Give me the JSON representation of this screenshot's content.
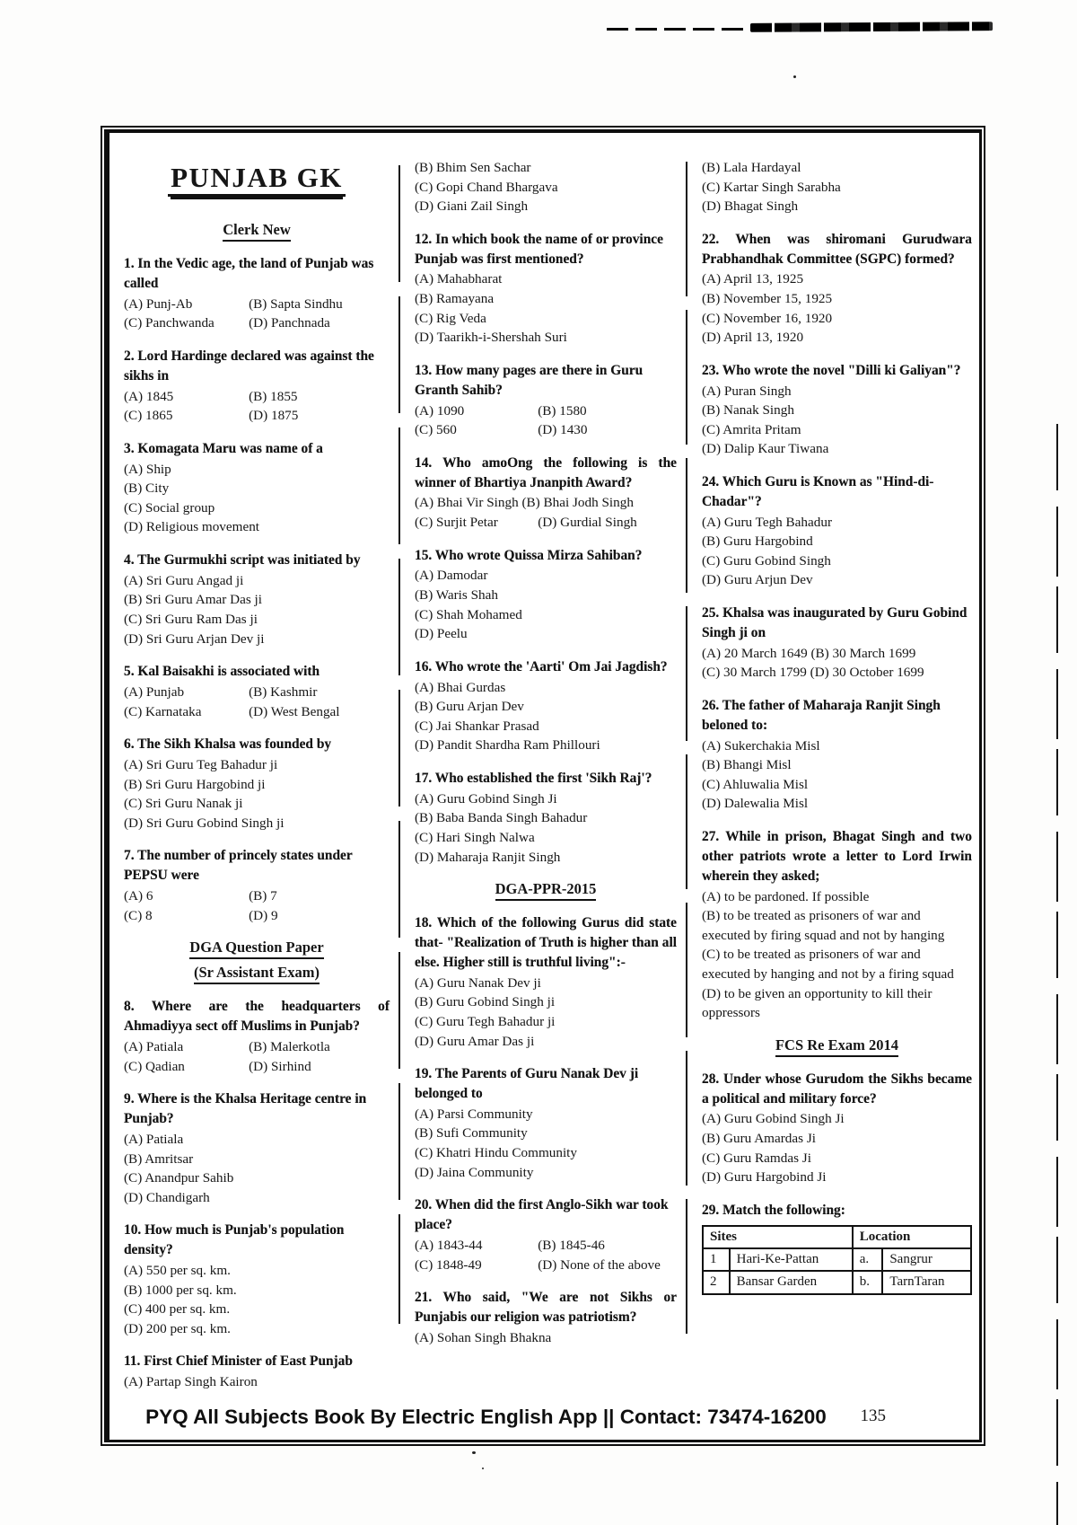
{
  "footer": {
    "text": "PYQ All Subjects Book By Electric English App || Contact: 73474-16200",
    "page": "135"
  },
  "columns": [
    {
      "blocks": [
        {
          "type": "page-title",
          "text": "PUNJAB GK"
        },
        {
          "type": "heading",
          "lines": [
            "Clerk New"
          ]
        },
        {
          "type": "question",
          "q": "1. In the Vedic age, the land of Punjab was called",
          "opts": [
            [
              "(A) Punj-Ab",
              "(B) Sapta Sindhu"
            ],
            [
              "(C) Panchwanda",
              "(D) Panchnada"
            ]
          ]
        },
        {
          "type": "question",
          "q": "2. Lord Hardinge declared was against the sikhs in",
          "opts": [
            [
              "(A) 1845",
              "(B) 1855"
            ],
            [
              "(C) 1865",
              "(D) 1875"
            ]
          ]
        },
        {
          "type": "question",
          "q": "3. Komagata Maru was name of a",
          "opts": [
            [
              "(A) Ship"
            ],
            [
              "(B) City"
            ],
            [
              "(C) Social group"
            ],
            [
              "(D) Religious movement"
            ]
          ]
        },
        {
          "type": "question",
          "q": "4. The Gurmukhi script was initiated by",
          "opts": [
            [
              "(A) Sri Guru Angad ji"
            ],
            [
              "(B) Sri Guru Amar Das ji"
            ],
            [
              "(C) Sri Guru Ram Das ji"
            ],
            [
              "(D) Sri Guru Arjan Dev ji"
            ]
          ]
        },
        {
          "type": "question",
          "q": "5. Kal Baisakhi is associated with",
          "opts": [
            [
              "(A) Punjab",
              "(B) Kashmir"
            ],
            [
              "(C) Karnataka",
              "(D) West Bengal"
            ]
          ]
        },
        {
          "type": "question",
          "q": "6. The Sikh Khalsa was founded by",
          "opts": [
            [
              "(A) Sri Guru Teg Bahadur ji"
            ],
            [
              "(B) Sri Guru Hargobind ji"
            ],
            [
              "(C) Sri Guru Nanak ji"
            ],
            [
              "(D) Sri Guru Gobind Singh ji"
            ]
          ]
        },
        {
          "type": "question",
          "q": "7. The number of princely states under PEPSU were",
          "opts": [
            [
              "(A) 6",
              "(B) 7"
            ],
            [
              "(C) 8",
              "(D) 9"
            ]
          ]
        },
        {
          "type": "heading",
          "lines": [
            "DGA Question Paper",
            "(Sr Assistant Exam)"
          ]
        },
        {
          "type": "question",
          "justify": true,
          "q": "8. Where are the headquarters of Ahmadiyya sect off Muslims in Punjab?",
          "opts": [
            [
              "(A) Patiala",
              "(B) Malerkotla"
            ],
            [
              "(C) Qadian",
              "(D) Sirhind"
            ]
          ]
        },
        {
          "type": "question",
          "q": "9. Where is the Khalsa Heritage centre in Punjab?",
          "opts": [
            [
              "(A) Patiala"
            ],
            [
              "(B) Amritsar"
            ],
            [
              "(C) Anandpur Sahib"
            ],
            [
              "(D) Chandigarh"
            ]
          ]
        },
        {
          "type": "question",
          "q": "10. How much is Punjab's population density?",
          "opts": [
            [
              "(A) 550 per sq. km."
            ],
            [
              "(B) 1000 per sq. km."
            ],
            [
              "(C) 400 per sq. km."
            ],
            [
              "(D) 200 per sq. km."
            ]
          ]
        },
        {
          "type": "question",
          "q": "11. First Chief Minister of East Punjab",
          "opts": [
            [
              "(A) Partap Singh Kairon"
            ]
          ]
        }
      ]
    },
    {
      "blocks": [
        {
          "type": "options-only",
          "opts": [
            [
              "(B) Bhim Sen Sachar"
            ],
            [
              "(C) Gopi Chand Bhargava"
            ],
            [
              "(D) Giani Zail Singh"
            ]
          ]
        },
        {
          "type": "question",
          "q": "12. In which book the name of or province Punjab was first mentioned?",
          "opts": [
            [
              "(A) Mahabharat"
            ],
            [
              "(B) Ramayana"
            ],
            [
              "(C) Rig Veda"
            ],
            [
              "(D) Taarikh-i-Shershah Suri"
            ]
          ]
        },
        {
          "type": "question",
          "q": "13. How many pages are there in Guru Granth Sahib?",
          "opts": [
            [
              "(A) 1090",
              "(B) 1580"
            ],
            [
              "(C) 560",
              "(D) 1430"
            ]
          ]
        },
        {
          "type": "question",
          "justify": true,
          "q": "14. Who amoOng the following is the winner of Bhartiya Jnanpith Award?",
          "opts": [
            [
              "(A) Bhai Vir Singh (B) Bhai Jodh Singh"
            ],
            [
              "(C) Surjit Petar",
              "(D) Gurdial Singh"
            ]
          ]
        },
        {
          "type": "question",
          "q": "15. Who wrote Quissa Mirza Sahiban?",
          "opts": [
            [
              "(A) Damodar"
            ],
            [
              "(B) Waris Shah"
            ],
            [
              "(C) Shah Mohamed"
            ],
            [
              "(D) Peelu"
            ]
          ]
        },
        {
          "type": "question",
          "q": "16. Who wrote the 'Aarti' Om Jai Jagdish?",
          "opts": [
            [
              "(A) Bhai Gurdas"
            ],
            [
              "(B) Guru Arjan Dev"
            ],
            [
              "(C) Jai Shankar Prasad"
            ],
            [
              "(D) Pandit Shardha Ram Phillouri"
            ]
          ]
        },
        {
          "type": "question",
          "q": "17. Who established the first 'Sikh Raj'?",
          "opts": [
            [
              "(A) Guru Gobind Singh Ji"
            ],
            [
              "(B) Baba Banda Singh Bahadur"
            ],
            [
              "(C) Hari Singh Nalwa"
            ],
            [
              "(D) Maharaja Ranjit Singh"
            ]
          ]
        },
        {
          "type": "heading",
          "lines": [
            "DGA-PPR-2015"
          ]
        },
        {
          "type": "question",
          "justify": true,
          "q": "18. Which of the following Gurus did state that- \"Realization of Truth is higher than all else. Higher still is truthful living\":-",
          "opts": [
            [
              "(A) Guru Nanak Dev ji"
            ],
            [
              "(B) Guru Gobind Singh ji"
            ],
            [
              "(C) Guru Tegh Bahadur ji"
            ],
            [
              "(D) Guru Amar Das ji"
            ]
          ]
        },
        {
          "type": "question",
          "q": "19. The Parents of Guru Nanak Dev ji belonged to",
          "opts": [
            [
              "(A) Parsi Community"
            ],
            [
              "(B) Sufi Community"
            ],
            [
              "(C) Khatri Hindu Community"
            ],
            [
              "(D) Jaina Community"
            ]
          ]
        },
        {
          "type": "question",
          "q": "20. When did the first Anglo-Sikh war took place?",
          "opts": [
            [
              "(A) 1843-44",
              "(B) 1845-46"
            ],
            [
              "(C) 1848-49",
              "(D) None of the above"
            ]
          ]
        },
        {
          "type": "question",
          "justify": true,
          "q": "21. Who said, \"We are not Sikhs or Punjabis our religion was patriotism?",
          "opts": [
            [
              "(A) Sohan Singh Bhakna"
            ]
          ]
        }
      ]
    },
    {
      "blocks": [
        {
          "type": "options-only",
          "opts": [
            [
              "(B) Lala Hardayal"
            ],
            [
              "(C) Kartar Singh Sarabha"
            ],
            [
              "(D) Bhagat Singh"
            ]
          ]
        },
        {
          "type": "question",
          "justify": true,
          "q": "22. When was shiromani Gurudwara Prabhandhak Committee (SGPC) formed?",
          "opts": [
            [
              "(A) April 13, 1925"
            ],
            [
              "(B) November 15, 1925"
            ],
            [
              "(C) November 16, 1920"
            ],
            [
              "(D) April 13, 1920"
            ]
          ]
        },
        {
          "type": "question",
          "q": "23. Who wrote the novel \"Dilli ki Galiyan\"?",
          "opts": [
            [
              "(A) Puran Singh"
            ],
            [
              "(B) Nanak Singh"
            ],
            [
              "(C) Amrita Pritam"
            ],
            [
              "(D) Dalip Kaur Tiwana"
            ]
          ]
        },
        {
          "type": "question",
          "q": "24. Which Guru is Known as \"Hind-di-Chadar\"?",
          "opts": [
            [
              "(A) Guru Tegh Bahadur"
            ],
            [
              "(B) Guru Hargobind"
            ],
            [
              "(C) Guru Gobind Singh"
            ],
            [
              "(D) Guru Arjun Dev"
            ]
          ]
        },
        {
          "type": "question",
          "q": "25. Khalsa was inaugurated by Guru Gobind Singh ji on",
          "opts": [
            [
              "(A) 20 March 1649 (B) 30 March 1699"
            ],
            [
              "(C) 30 March 1799 (D) 30 October 1699"
            ]
          ]
        },
        {
          "type": "question",
          "q": "26. The father of Maharaja Ranjit Singh beloned to:",
          "opts": [
            [
              "(A) Sukerchakia Misl"
            ],
            [
              "(B) Bhangi Misl"
            ],
            [
              "(C) Ahluwalia Misl"
            ],
            [
              "(D) Dalewalia Misl"
            ]
          ]
        },
        {
          "type": "question",
          "justify": true,
          "q": "27. While in prison, Bhagat Singh and two other patriots wrote a letter to Lord Irwin wherein they asked;",
          "opts": [
            [
              "(A) to be pardoned. If possible"
            ],
            [
              "(B) to be treated as prisoners of war and executed by firing squad and not by hanging"
            ],
            [
              "(C) to be treated as prisoners of war and executed by hanging and not by a firing squad"
            ],
            [
              "(D) to be given an opportunity to kill their oppressors"
            ]
          ]
        },
        {
          "type": "heading",
          "lines": [
            "FCS Re Exam 2014"
          ]
        },
        {
          "type": "question",
          "justify": true,
          "q": "28. Under whose Gurudom the Sikhs became a political and military force?",
          "opts": [
            [
              "(A) Guru Gobind Singh Ji"
            ],
            [
              "(B) Guru Amardas Ji"
            ],
            [
              "(C) Guru Ramdas Ji"
            ],
            [
              "(D) Guru Hargobind Ji"
            ]
          ]
        },
        {
          "type": "question",
          "q": "29. Match the following:",
          "table": {
            "headers": [
              "Sites",
              "Location"
            ],
            "rows": [
              [
                "1",
                "Hari-Ke-Pattan",
                "a.",
                "Sangrur"
              ],
              [
                "2",
                "Bansar Garden",
                "b.",
                "TarnTaran"
              ]
            ]
          }
        }
      ]
    }
  ]
}
